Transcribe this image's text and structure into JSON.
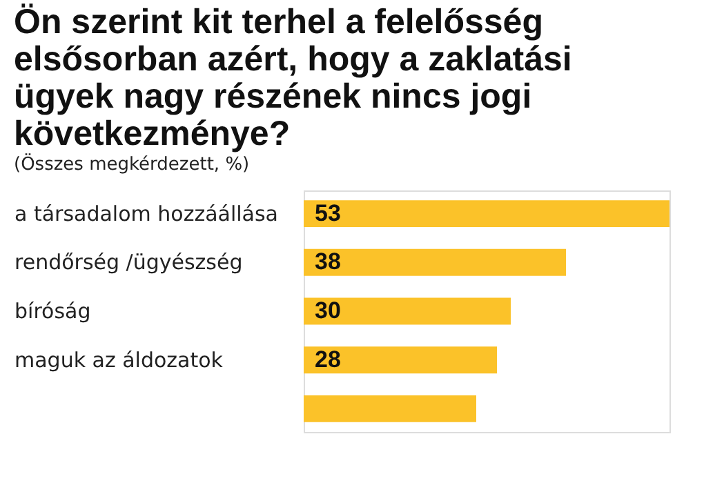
{
  "chart_data": {
    "type": "bar",
    "orientation": "horizontal",
    "title": [
      "Ön szerint kit terhel a felelősség",
      "elsősorban azért, hogy a zaklatási",
      "ügyek nagy részének nincs jogi",
      "következménye?"
    ],
    "subtitle": "(Összes megkérdezett, %)",
    "categories": [
      "a társadalom hozzáállása",
      "rendőrség /ügyészség",
      "bíróság",
      "maguk az áldozatok",
      null
    ],
    "values": [
      53,
      38,
      30,
      28,
      25
    ],
    "value_labels": [
      "53",
      "38",
      "30",
      "28",
      null
    ],
    "color": "#fbc229"
  }
}
